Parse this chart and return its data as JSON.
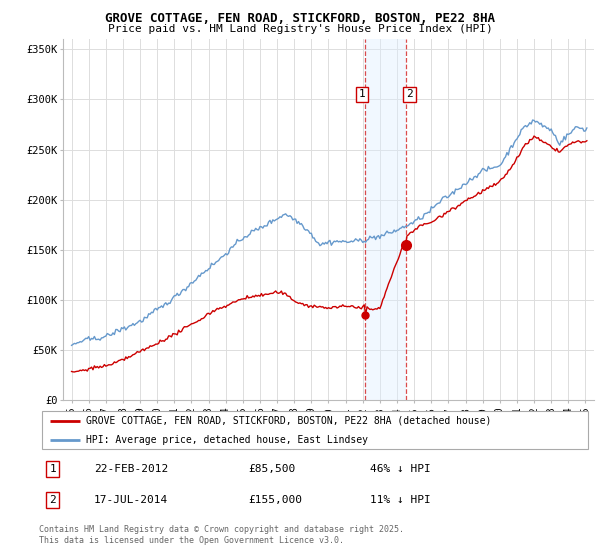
{
  "title": "GROVE COTTAGE, FEN ROAD, STICKFORD, BOSTON, PE22 8HA",
  "subtitle": "Price paid vs. HM Land Registry's House Price Index (HPI)",
  "legend_line1": "GROVE COTTAGE, FEN ROAD, STICKFORD, BOSTON, PE22 8HA (detached house)",
  "legend_line2": "HPI: Average price, detached house, East Lindsey",
  "footer": "Contains HM Land Registry data © Crown copyright and database right 2025.\nThis data is licensed under the Open Government Licence v3.0.",
  "sale1_date": "22-FEB-2012",
  "sale1_price": "£85,500",
  "sale1_hpi": "46% ↓ HPI",
  "sale2_date": "17-JUL-2014",
  "sale2_price": "£155,000",
  "sale2_hpi": "11% ↓ HPI",
  "sale1_year": 2012.13,
  "sale2_year": 2014.54,
  "sale1_value": 85500,
  "sale2_value": 155000,
  "hpi_color": "#6699cc",
  "price_color": "#cc0000",
  "vline_color": "#cc0000",
  "vspan_color": "#ddeeff",
  "ylim": [
    0,
    360000
  ],
  "xlim_start": 1994.5,
  "xlim_end": 2025.5,
  "background_color": "#ffffff",
  "grid_color": "#dddddd"
}
